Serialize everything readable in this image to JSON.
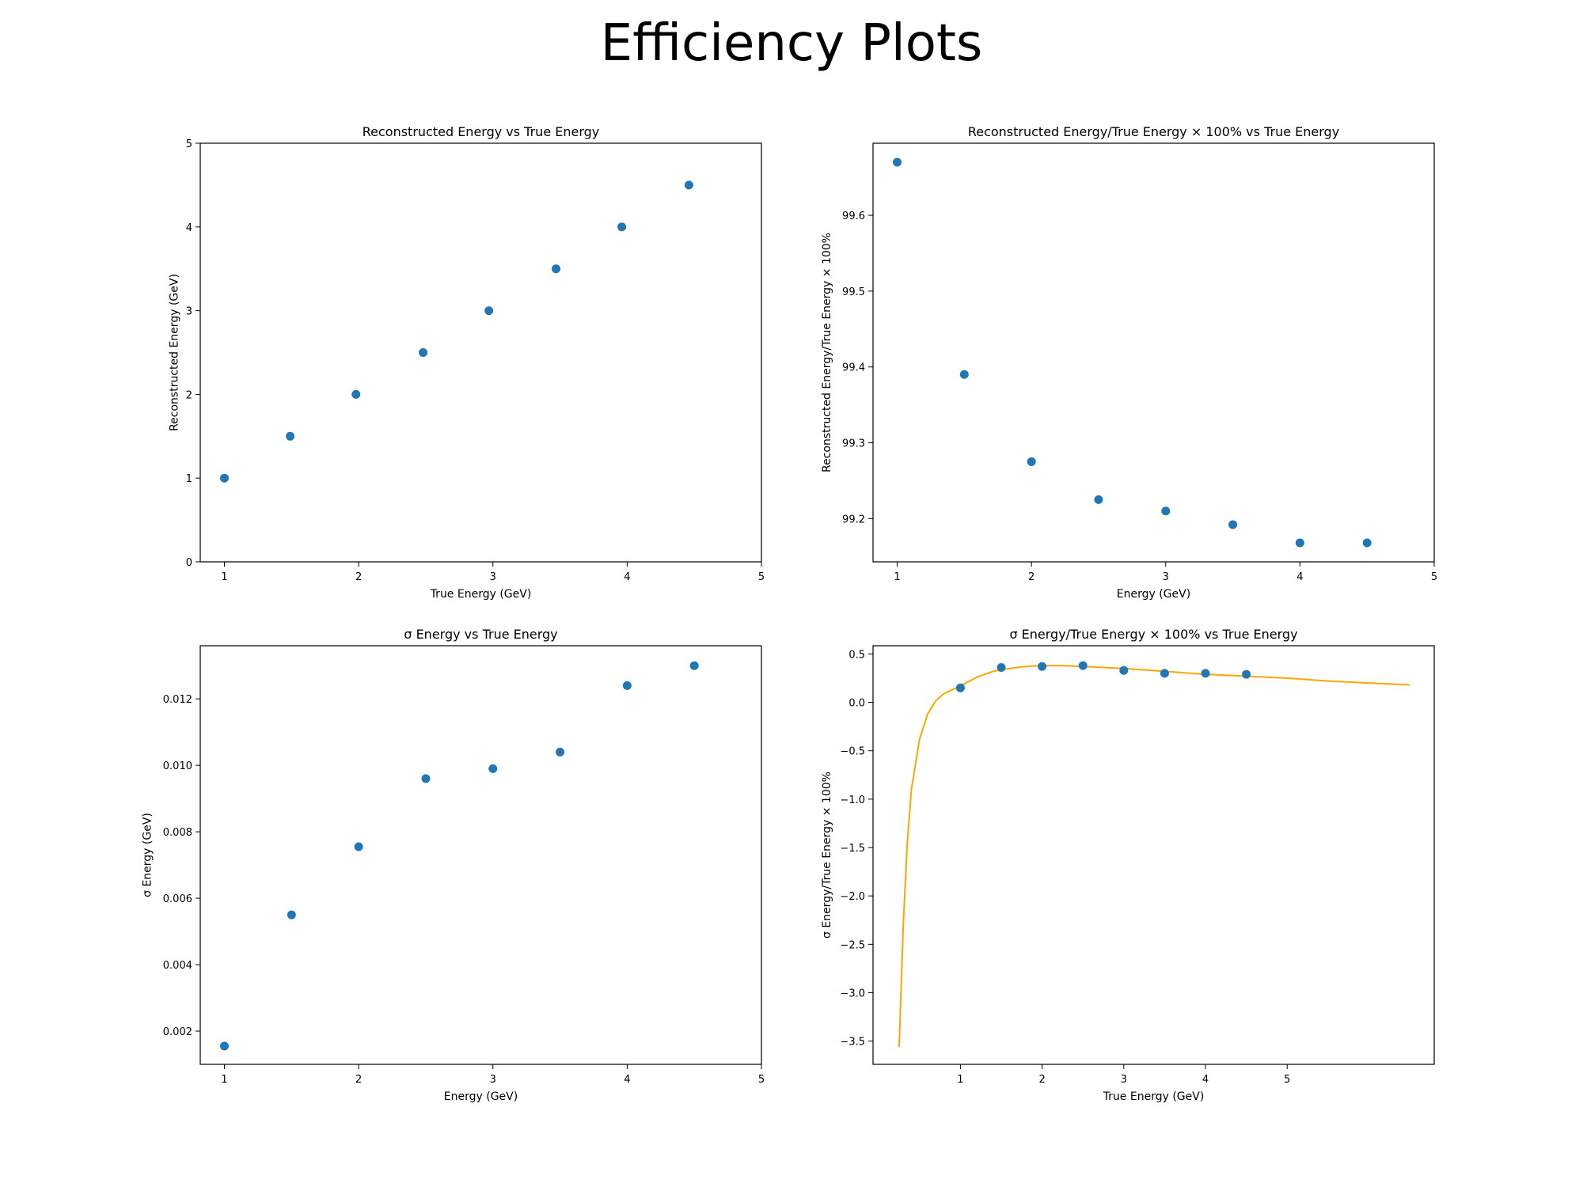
{
  "suptitle": "Efficiency Plots",
  "colors": {
    "points": "#1f77b4",
    "fit": "#ffa500",
    "axes": "#000000"
  },
  "chart_data": [
    {
      "type": "scatter",
      "title": "Reconstructed Energy vs True Energy",
      "xlabel": "True Energy (GeV)",
      "ylabel": "Reconstructed Energy (GeV)",
      "xlim": [
        0.82,
        5.0
      ],
      "ylim": [
        0,
        5
      ],
      "xticks": [
        1,
        2,
        3,
        4,
        5
      ],
      "yticks": [
        0,
        1,
        2,
        3,
        4,
        5
      ],
      "tick_decimals": 0,
      "grid": false,
      "points": {
        "x": [
          1.0,
          1.49,
          1.98,
          2.48,
          2.97,
          3.47,
          3.96,
          4.46
        ],
        "y": [
          1.0,
          1.5,
          2.0,
          2.5,
          3.0,
          3.5,
          4.0,
          4.5
        ]
      }
    },
    {
      "type": "scatter",
      "title": "Reconstructed Energy/True Energy × 100% vs True Energy",
      "xlabel": "Energy (GeV)",
      "ylabel": "Reconstructed Energy/True Energy × 100%",
      "xlim": [
        0.82,
        5.0
      ],
      "ylim": [
        99.143,
        99.695
      ],
      "xticks": [
        1,
        2,
        3,
        4,
        5
      ],
      "yticks": [
        99.2,
        99.3,
        99.4,
        99.5,
        99.6
      ],
      "tick_decimals": 1,
      "grid": false,
      "points": {
        "x": [
          1.0,
          1.5,
          2.0,
          2.5,
          3.0,
          3.5,
          4.0,
          4.5
        ],
        "y": [
          99.67,
          99.39,
          99.275,
          99.225,
          99.21,
          99.192,
          99.168,
          99.168
        ]
      }
    },
    {
      "type": "scatter",
      "title": "σ Energy vs True Energy",
      "xlabel": "Energy (GeV)",
      "ylabel": "σ Energy (GeV)",
      "xlim": [
        0.82,
        5.0
      ],
      "ylim": [
        0.001,
        0.0136
      ],
      "xticks": [
        1,
        2,
        3,
        4,
        5
      ],
      "yticks": [
        0.002,
        0.004,
        0.006,
        0.008,
        0.01,
        0.012
      ],
      "tick_decimals": 3,
      "grid": false,
      "points": {
        "x": [
          1.0,
          1.5,
          2.0,
          2.5,
          3.0,
          3.5,
          4.0,
          4.5
        ],
        "y": [
          0.00155,
          0.0055,
          0.00755,
          0.0096,
          0.0099,
          0.0104,
          0.0124,
          0.013
        ]
      }
    },
    {
      "type": "scatter",
      "title": "σ Energy/True Energy × 100% vs True Energy",
      "xlabel": "True Energy (GeV)",
      "ylabel": "σ Energy/True Energy × 100%",
      "xlim": [
        -0.07,
        6.8
      ],
      "ylim": [
        -3.74,
        0.585
      ],
      "xticks": [
        1,
        2,
        3,
        4,
        5
      ],
      "yticks": [
        0.5,
        0.0,
        -0.5,
        -1.0,
        -1.5,
        -2.0,
        -2.5,
        -3.0,
        -3.5
      ],
      "tick_decimals": 1,
      "grid": false,
      "points": {
        "x": [
          1.0,
          1.5,
          2.0,
          2.5,
          3.0,
          3.5,
          4.0,
          4.5
        ],
        "y": [
          0.15,
          0.36,
          0.37,
          0.38,
          0.33,
          0.3,
          0.3,
          0.29
        ]
      },
      "fit_line": {
        "x": [
          0.25,
          0.3,
          0.35,
          0.4,
          0.5,
          0.6,
          0.7,
          0.8,
          0.9,
          1.0,
          1.2,
          1.4,
          1.6,
          1.8,
          2.0,
          2.25,
          2.5,
          3.0,
          3.5,
          4.0,
          4.5,
          5.0,
          5.5,
          6.0,
          6.5
        ],
        "y": [
          -3.56,
          -2.3,
          -1.45,
          -0.9,
          -0.38,
          -0.12,
          0.02,
          0.09,
          0.13,
          0.17,
          0.26,
          0.32,
          0.35,
          0.37,
          0.38,
          0.38,
          0.37,
          0.35,
          0.32,
          0.29,
          0.27,
          0.25,
          0.22,
          0.2,
          0.18
        ]
      }
    }
  ]
}
